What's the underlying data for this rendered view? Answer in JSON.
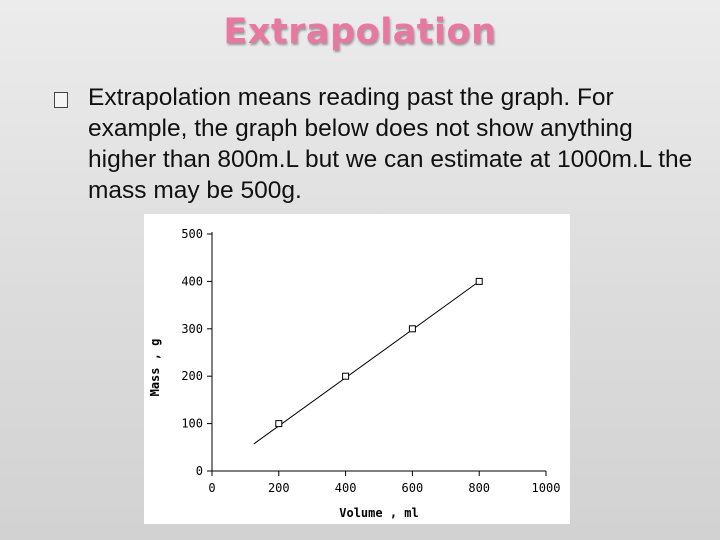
{
  "slide": {
    "title": "Extrapolation",
    "body": "Extrapolation means reading past the graph. For example, the graph below does not show anything higher than 800m.L but we can estimate at 1000m.L the mass may be 500g."
  },
  "chart_data": {
    "type": "scatter",
    "title": "",
    "xlabel": "Volume , ml",
    "ylabel": "Mass , g",
    "xlim": [
      0,
      1000
    ],
    "ylim": [
      0,
      500
    ],
    "x_ticks": [
      "0",
      "200",
      "400",
      "600",
      "800",
      "1000"
    ],
    "y_ticks": [
      "0",
      "100",
      "200",
      "300",
      "400",
      "500"
    ],
    "grid": false,
    "series": [
      {
        "x": [
          200,
          400,
          600,
          800
        ],
        "y": [
          100,
          200,
          300,
          400
        ]
      }
    ],
    "trendline": {
      "x": [
        125,
        800
      ],
      "y": [
        57,
        400
      ]
    }
  }
}
